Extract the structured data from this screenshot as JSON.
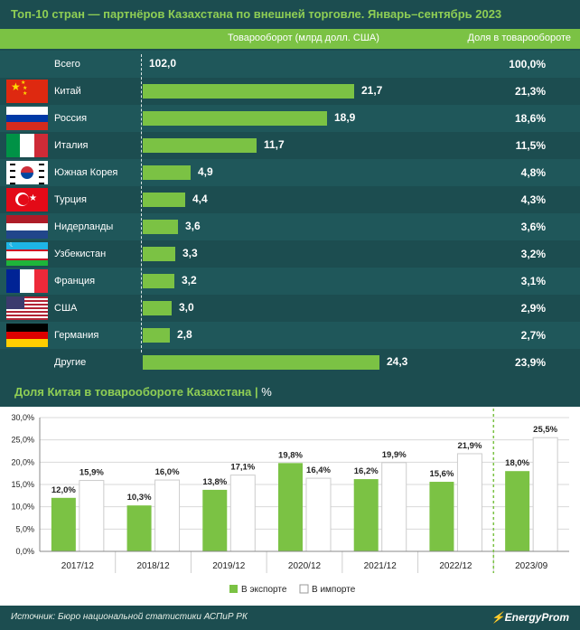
{
  "title": "Топ-10 стран — партнёров Казахстана по внешней торговле. Январь–сентябрь 2023",
  "header": {
    "turnover": "Товарооборот (млрд долл. США)",
    "share": "Доля в товарообороте"
  },
  "countries": [
    {
      "name": "Всего",
      "value": "102,0",
      "share": "100,0%",
      "num": 102.0,
      "flag": "none"
    },
    {
      "name": "Китай",
      "value": "21,7",
      "share": "21,3%",
      "num": 21.7,
      "flag": "china"
    },
    {
      "name": "Россия",
      "value": "18,9",
      "share": "18,6%",
      "num": 18.9,
      "flag": "russia"
    },
    {
      "name": "Италия",
      "value": "11,7",
      "share": "11,5%",
      "num": 11.7,
      "flag": "italy"
    },
    {
      "name": "Южная Корея",
      "value": "4,9",
      "share": "4,8%",
      "num": 4.9,
      "flag": "korea"
    },
    {
      "name": "Турция",
      "value": "4,4",
      "share": "4,3%",
      "num": 4.4,
      "flag": "turkey"
    },
    {
      "name": "Нидерланды",
      "value": "3,6",
      "share": "3,6%",
      "num": 3.6,
      "flag": "netherlands"
    },
    {
      "name": "Узбекистан",
      "value": "3,3",
      "share": "3,2%",
      "num": 3.3,
      "flag": "uzbekistan"
    },
    {
      "name": "Франция",
      "value": "3,2",
      "share": "3,1%",
      "num": 3.2,
      "flag": "france"
    },
    {
      "name": "США",
      "value": "3,0",
      "share": "2,9%",
      "num": 3.0,
      "flag": "usa"
    },
    {
      "name": "Германия",
      "value": "2,8",
      "share": "2,7%",
      "num": 2.8,
      "flag": "germany"
    },
    {
      "name": "Другие",
      "value": "24,3",
      "share": "23,9%",
      "num": 24.3,
      "flag": "none"
    }
  ],
  "subtitle": {
    "text": "Доля Китая в товарообороте Казахстана",
    "unit": "%"
  },
  "chart_data": {
    "type": "bar",
    "title": "Доля Китая в товарообороте Казахстана",
    "categories": [
      "2017/12",
      "2018/12",
      "2019/12",
      "2020/12",
      "2021/12",
      "2022/12",
      "2023/09"
    ],
    "series": [
      {
        "name": "В экспорте",
        "values": [
          12.0,
          10.3,
          13.8,
          19.8,
          16.2,
          15.6,
          18.0
        ],
        "labels": [
          "12,0%",
          "10,3%",
          "13,8%",
          "19,8%",
          "16,2%",
          "15,6%",
          "18,0%"
        ],
        "color": "#7bc244"
      },
      {
        "name": "В импорте",
        "values": [
          15.9,
          16.0,
          17.1,
          16.4,
          19.9,
          21.9,
          25.5
        ],
        "labels": [
          "15,9%",
          "16,0%",
          "17,1%",
          "16,4%",
          "19,9%",
          "21,9%",
          "25,5%"
        ],
        "color": "#ffffff"
      }
    ],
    "yticks": [
      "0,0%",
      "5,0%",
      "10,0%",
      "15,0%",
      "20,0%",
      "25,0%",
      "30,0%"
    ],
    "ylim": [
      0,
      30
    ],
    "legend": "bottom"
  },
  "footer": {
    "source": "Источник: Бюро национальной статистики АСПиР РК",
    "brand": "EnergyProm"
  }
}
